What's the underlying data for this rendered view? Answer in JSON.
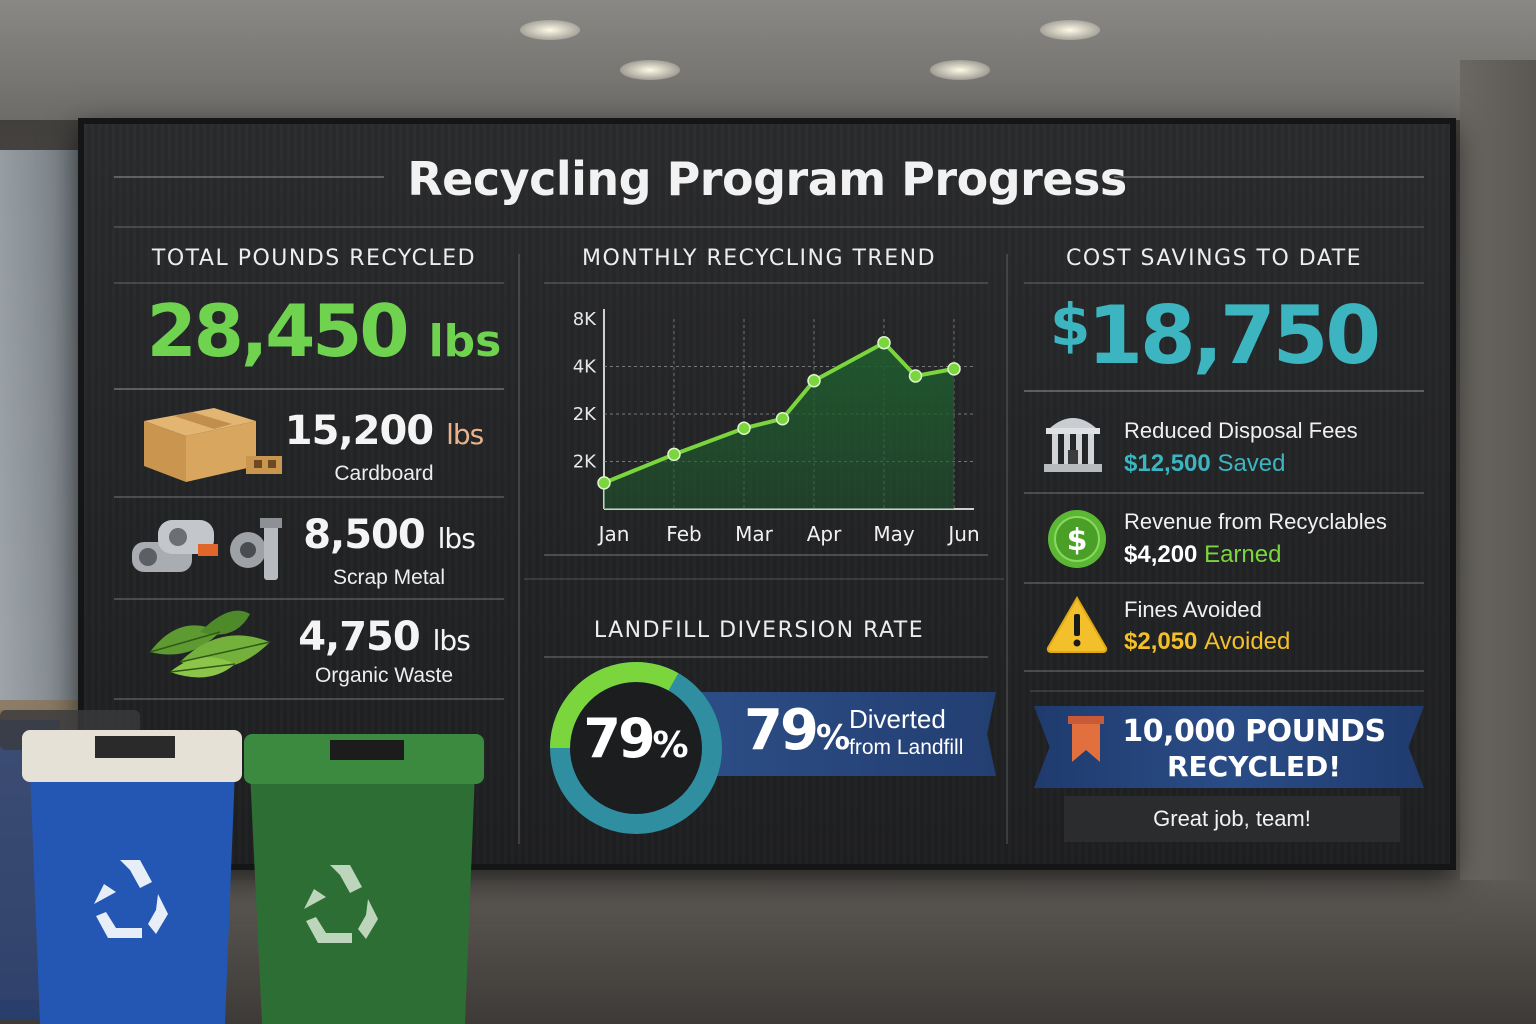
{
  "title": "Recycling Program Progress",
  "total": {
    "heading": "TOTAL POUNDS RECYCLED",
    "value": "28,450",
    "unit": "lbs",
    "materials": [
      {
        "value": "15,200",
        "unit": "lbs",
        "label": "Cardboard",
        "icon": "cardboard-box-icon"
      },
      {
        "value": "8,500",
        "unit": "lbs",
        "label": "Scrap Metal",
        "icon": "scrap-metal-icon"
      },
      {
        "value": "4,750",
        "unit": "lbs",
        "label": "Organic Waste",
        "icon": "leaves-icon"
      }
    ]
  },
  "chart_data": {
    "type": "area",
    "title": "MONTHLY RECYCLING TREND",
    "categories": [
      "Jan",
      "Feb",
      "Mar",
      "Apr",
      "May",
      "Jun"
    ],
    "y_tick_labels": [
      "8K",
      "4K",
      "2K",
      "2K"
    ],
    "points": [
      {
        "x": "Jan",
        "y": 1.1
      },
      {
        "x": "Feb",
        "y": 2.3
      },
      {
        "x": "Mar",
        "y": 3.4
      },
      {
        "x": "Mar-mid",
        "y": 3.8
      },
      {
        "x": "Apr",
        "y": 5.4
      },
      {
        "x": "May",
        "y": 7.0
      },
      {
        "x": "Jun-early",
        "y": 5.6
      },
      {
        "x": "Jun",
        "y": 5.9
      }
    ],
    "ylim": [
      0,
      8
    ],
    "grid": true,
    "line_color": "#7bd63e",
    "fill_color": "#1f5a2e"
  },
  "diversion": {
    "heading": "LANDFILL DIVERSION RATE",
    "percent": 79,
    "ring_value": "79",
    "banner_value": "79",
    "symbol": "%",
    "line1": "Diverted",
    "line2": "from Landfill",
    "ring_colors": [
      "#7bd63e",
      "#2f8fa0"
    ]
  },
  "savings": {
    "heading": "COST SAVINGS TO DATE",
    "currency": "$",
    "value": "18,750",
    "items": [
      {
        "title": "Reduced Disposal Fees",
        "amount": "$12,500",
        "word": "Saved",
        "color": "#3cb5c0",
        "icon": "building-icon"
      },
      {
        "title": "Revenue from Recyclables",
        "amount": "$4,200",
        "word": "Earned",
        "color": "#7bd63e",
        "icon": "dollar-coin-icon"
      },
      {
        "title": "Fines Avoided",
        "amount": "$2,050",
        "word": "Avoided",
        "color": "#f3c02b",
        "icon": "warning-icon"
      }
    ]
  },
  "milestone": {
    "line1": "10,000 POUNDS",
    "line2": "RECYCLED!",
    "sub": "Great job, team!",
    "icon": "bookmark-ribbon-icon"
  }
}
